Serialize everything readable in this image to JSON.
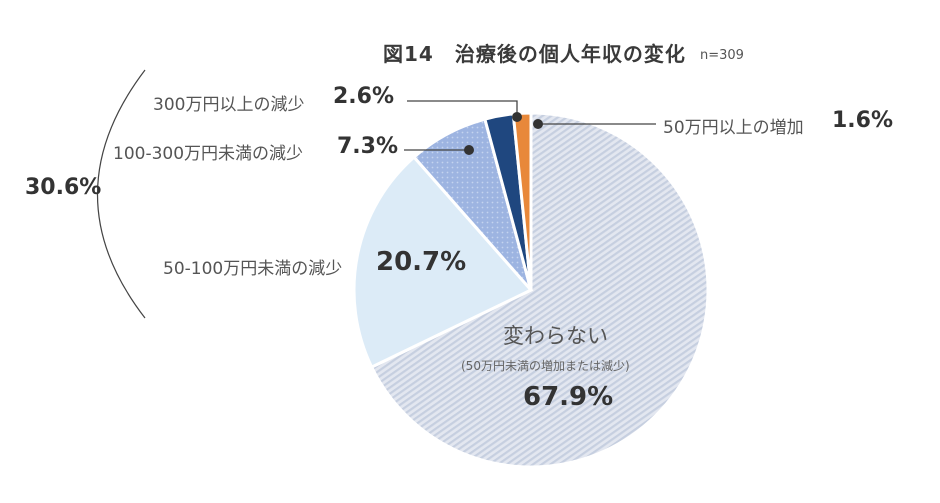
{
  "header": {
    "title": "図14　治療後の個人年収の変化",
    "sample_size": "n=309"
  },
  "labels": {
    "increase_50": {
      "text": "50万円以上の増加",
      "pct": "1.6%"
    },
    "decrease_300": {
      "text": "300万円以上の減少",
      "pct": "2.6%"
    },
    "decrease_100_300": {
      "text": "100-300万円未満の減少",
      "pct": "7.3%"
    },
    "decrease_50_100": {
      "text": "50-100万円未満の減少",
      "pct": "20.7%"
    },
    "no_change": {
      "text": "変わらない",
      "sub": "(50万円未満の増加または減少)",
      "pct": "67.9%"
    },
    "bracket_total": "30.6%"
  },
  "colors": {
    "increase_50": "#e8883a",
    "decrease_300": "#1f477f",
    "decrease_100_300": "#9fb6e2",
    "decrease_50_100": "#dcebf7",
    "no_change": "#d3dae8"
  },
  "chart_data": {
    "type": "pie",
    "title": "図14　治療後の個人年収の変化",
    "subtitle": "n=309",
    "categories": [
      "変わらない（50万円未満の増加または減少）",
      "50-100万円未満の減少",
      "100-300万円未満の減少",
      "300万円以上の減少",
      "50万円以上の増加"
    ],
    "values": [
      67.9,
      20.7,
      7.3,
      2.6,
      1.6
    ],
    "unit": "%",
    "start_angle": "12 o'clock, clockwise",
    "annotations": [
      {
        "text": "30.6%",
        "covers": [
          "50-100万円未満の減少",
          "100-300万円未満の減少",
          "300万円以上の減少"
        ]
      }
    ]
  }
}
